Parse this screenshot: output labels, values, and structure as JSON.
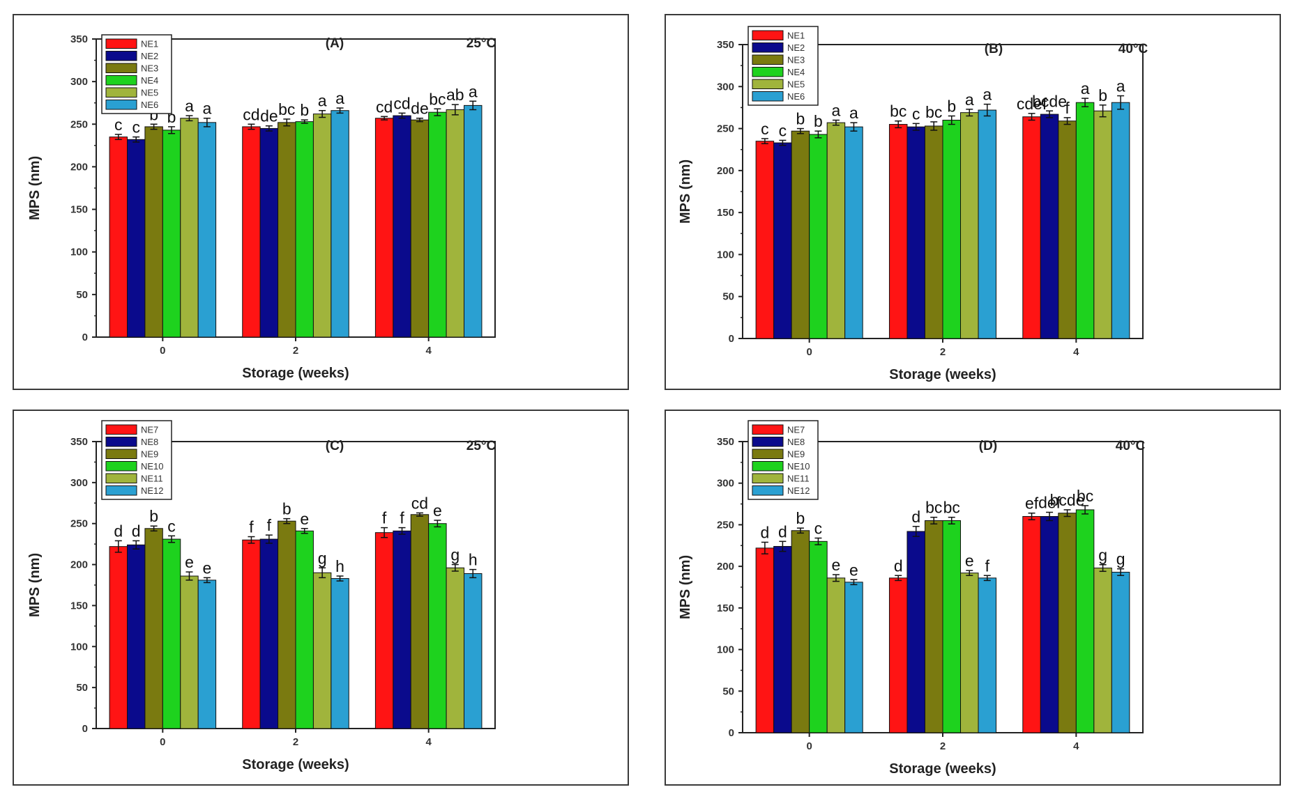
{
  "colors": {
    "s1": "#ff1414",
    "s2": "#0a0a8c",
    "s3": "#7a7a10",
    "s4": "#1ed21e",
    "s5": "#a0b43c",
    "s6": "#2aa0d2"
  },
  "chart_data": [
    {
      "type": "bar",
      "panel_label": "(A)",
      "temperature": "25°C",
      "xlabel": "Storage (weeks)",
      "ylabel": "MPS (nm)",
      "ylim": [
        0,
        350
      ],
      "yticks": [
        "0",
        "50",
        "100",
        "150",
        "200",
        "250",
        "300",
        "350"
      ],
      "categories": [
        "0",
        "2",
        "4"
      ],
      "series": [
        {
          "name": "NE1",
          "values": [
            235,
            247,
            257
          ],
          "errors": [
            3,
            3,
            2
          ],
          "letters": [
            "c",
            "cd",
            "cd"
          ]
        },
        {
          "name": "NE2",
          "values": [
            232,
            245,
            260
          ],
          "errors": [
            3,
            3,
            3
          ],
          "letters": [
            "c",
            "de",
            "cd"
          ]
        },
        {
          "name": "NE3",
          "values": [
            247,
            252,
            255
          ],
          "errors": [
            3,
            4,
            2
          ],
          "letters": [
            "b",
            "bc",
            "de"
          ]
        },
        {
          "name": "NE4",
          "values": [
            243,
            253,
            264
          ],
          "errors": [
            4,
            2,
            4
          ],
          "letters": [
            "b",
            "b",
            "bc"
          ]
        },
        {
          "name": "NE5",
          "values": [
            257,
            262,
            267
          ],
          "errors": [
            3,
            4,
            6
          ],
          "letters": [
            "a",
            "a",
            "ab"
          ]
        },
        {
          "name": "NE6",
          "values": [
            252,
            266,
            272
          ],
          "errors": [
            5,
            3,
            5
          ],
          "letters": [
            "a",
            "a",
            "a"
          ]
        }
      ]
    },
    {
      "type": "bar",
      "panel_label": "(B)",
      "temperature": "40°C",
      "xlabel": "Storage (weeks)",
      "ylabel": "MPS (nm)",
      "ylim": [
        0,
        350
      ],
      "yticks": [
        "0",
        "50",
        "100",
        "150",
        "200",
        "250",
        "300",
        "350"
      ],
      "categories": [
        "0",
        "2",
        "4"
      ],
      "series": [
        {
          "name": "NE1",
          "values": [
            235,
            255,
            264
          ],
          "errors": [
            3,
            4,
            4
          ],
          "letters": [
            "c",
            "bc",
            "cdef"
          ]
        },
        {
          "name": "NE2",
          "values": [
            233,
            252,
            267
          ],
          "errors": [
            3,
            4,
            4
          ],
          "letters": [
            "c",
            "c",
            "bcde"
          ]
        },
        {
          "name": "NE3",
          "values": [
            247,
            253,
            259
          ],
          "errors": [
            3,
            5,
            4
          ],
          "letters": [
            "b",
            "bc",
            "f"
          ]
        },
        {
          "name": "NE4",
          "values": [
            243,
            260,
            281
          ],
          "errors": [
            4,
            5,
            5
          ],
          "letters": [
            "b",
            "b",
            "a"
          ]
        },
        {
          "name": "NE5",
          "values": [
            257,
            269,
            271
          ],
          "errors": [
            3,
            4,
            7
          ],
          "letters": [
            "a",
            "a",
            "b"
          ]
        },
        {
          "name": "NE6",
          "values": [
            252,
            272,
            281
          ],
          "errors": [
            5,
            7,
            8
          ],
          "letters": [
            "a",
            "a",
            "a"
          ]
        }
      ]
    },
    {
      "type": "bar",
      "panel_label": "(C)",
      "temperature": "25°C",
      "xlabel": "Storage (weeks)",
      "ylabel": "MPS (nm)",
      "ylim": [
        0,
        350
      ],
      "yticks": [
        "0",
        "50",
        "100",
        "150",
        "200",
        "250",
        "300",
        "350"
      ],
      "categories": [
        "0",
        "2",
        "4"
      ],
      "series": [
        {
          "name": "NE7",
          "values": [
            222,
            230,
            239
          ],
          "errors": [
            7,
            4,
            6
          ],
          "letters": [
            "d",
            "f",
            "f"
          ]
        },
        {
          "name": "NE8",
          "values": [
            224,
            231,
            241
          ],
          "errors": [
            5,
            5,
            4
          ],
          "letters": [
            "d",
            "f",
            "f"
          ]
        },
        {
          "name": "NE9",
          "values": [
            244,
            253,
            261
          ],
          "errors": [
            3,
            3,
            2
          ],
          "letters": [
            "b",
            "b",
            "cd"
          ]
        },
        {
          "name": "NE10",
          "values": [
            231,
            241,
            250
          ],
          "errors": [
            4,
            3,
            4
          ],
          "letters": [
            "c",
            "e",
            "e"
          ]
        },
        {
          "name": "NE11",
          "values": [
            186,
            190,
            196
          ],
          "errors": [
            5,
            6,
            4
          ],
          "letters": [
            "e",
            "g",
            "g"
          ]
        },
        {
          "name": "NE12",
          "values": [
            181,
            183,
            189
          ],
          "errors": [
            3,
            3,
            5
          ],
          "letters": [
            "e",
            "h",
            "h"
          ]
        }
      ]
    },
    {
      "type": "bar",
      "panel_label": "(D)",
      "temperature": "40°C",
      "xlabel": "Storage (weeks)",
      "ylabel": "MPS (nm)",
      "ylim": [
        0,
        350
      ],
      "yticks": [
        "0",
        "50",
        "100",
        "150",
        "200",
        "250",
        "300",
        "350"
      ],
      "categories": [
        "0",
        "2",
        "4"
      ],
      "series": [
        {
          "name": "NE7",
          "values": [
            222,
            186,
            260
          ],
          "errors": [
            7,
            3,
            4
          ],
          "letters": [
            "d",
            "d",
            "ef"
          ]
        },
        {
          "name": "NE8",
          "values": [
            224,
            242,
            260
          ],
          "errors": [
            6,
            6,
            5
          ],
          "letters": [
            "d",
            "d",
            "def"
          ]
        },
        {
          "name": "NE9",
          "values": [
            243,
            255,
            264
          ],
          "errors": [
            3,
            4,
            4
          ],
          "letters": [
            "b",
            "bc",
            "bcde"
          ]
        },
        {
          "name": "NE10",
          "values": [
            230,
            255,
            268
          ],
          "errors": [
            4,
            4,
            5
          ],
          "letters": [
            "c",
            "bc",
            "bc"
          ]
        },
        {
          "name": "NE11",
          "values": [
            186,
            192,
            198
          ],
          "errors": [
            4,
            3,
            4
          ],
          "letters": [
            "e",
            "e",
            "g"
          ]
        },
        {
          "name": "NE12",
          "values": [
            181,
            186,
            193
          ],
          "errors": [
            3,
            3,
            4
          ],
          "letters": [
            "e",
            "f",
            "g"
          ]
        }
      ]
    }
  ]
}
